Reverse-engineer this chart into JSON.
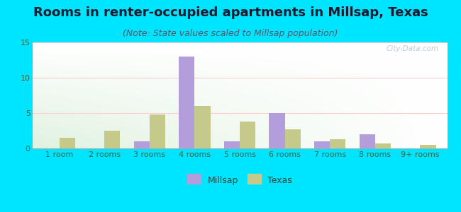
{
  "title": "Rooms in renter-occupied apartments in Millsap, Texas",
  "subtitle": "(Note: State values scaled to Millsap population)",
  "categories": [
    "1 room",
    "2 rooms",
    "3 rooms",
    "4 rooms",
    "5 rooms",
    "6 rooms",
    "7 rooms",
    "8 rooms",
    "9+ rooms"
  ],
  "millsap_values": [
    0,
    0,
    1,
    13,
    1,
    5,
    1,
    2,
    0
  ],
  "texas_values": [
    1.5,
    2.5,
    4.8,
    6.0,
    3.8,
    2.7,
    1.3,
    0.7,
    0.5
  ],
  "millsap_color": "#b39ddb",
  "texas_color": "#c5c98a",
  "ylim": [
    0,
    15
  ],
  "yticks": [
    0,
    5,
    10,
    15
  ],
  "bar_width": 0.35,
  "background_color_fig": "#00e5ff",
  "title_fontsize": 13,
  "subtitle_fontsize": 9,
  "tick_label_fontsize": 8,
  "legend_fontsize": 9,
  "watermark_text": "City-Data.com"
}
